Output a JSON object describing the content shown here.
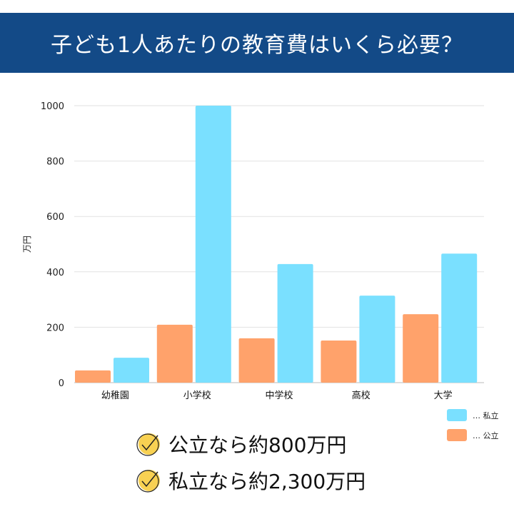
{
  "title": "子ども1人あたりの教育費はいくら必要？",
  "chart_data": {
    "type": "bar",
    "title": "",
    "ylabel": "万円",
    "xlabel": "",
    "ylim": [
      0,
      1000
    ],
    "yticks": [
      0,
      200,
      400,
      600,
      800,
      1000
    ],
    "grid": true,
    "categories": [
      "幼稚園",
      "小学校",
      "中学校",
      "高校",
      "大学"
    ],
    "series": [
      {
        "name": "公立",
        "color": "#ffa26b",
        "values": [
          44,
          209,
          160,
          152,
          247
        ]
      },
      {
        "name": "私立",
        "color": "#7ae0ff",
        "values": [
          90,
          1000,
          428,
          314,
          466
        ]
      }
    ],
    "legend_position": "bottom-right"
  },
  "legend": [
    {
      "label": "… 私立",
      "color": "#7ae0ff"
    },
    {
      "label": "… 公立",
      "color": "#ffa26b"
    }
  ],
  "summary": [
    "公立なら約800万円",
    "私立なら約2,300万円"
  ]
}
